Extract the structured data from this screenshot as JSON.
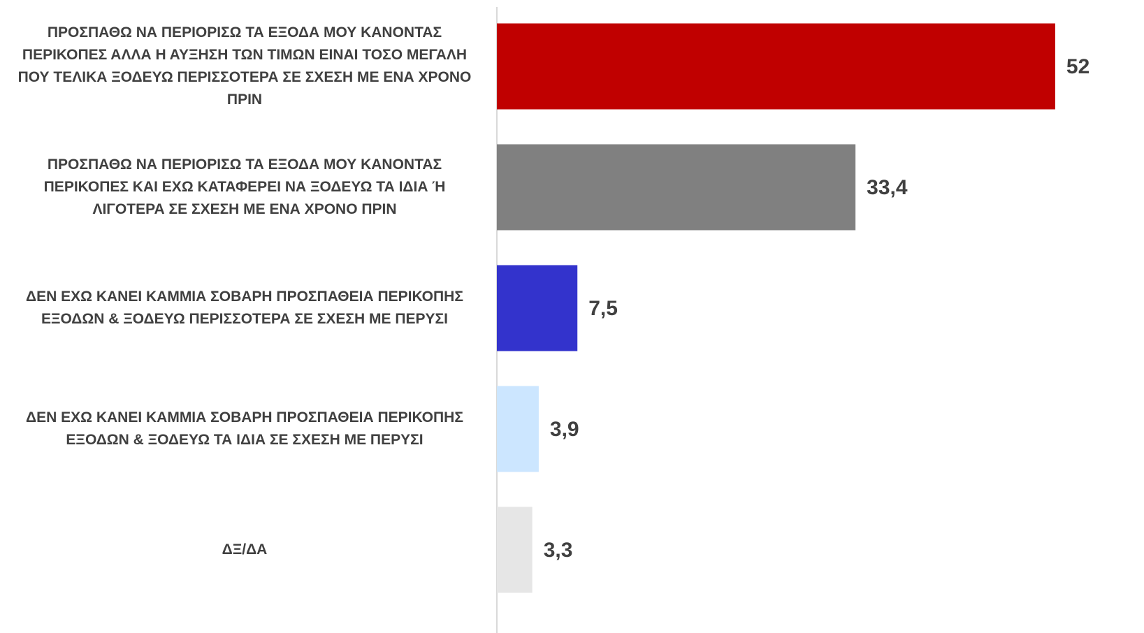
{
  "chart_data": {
    "type": "barh",
    "categories": [
      "ΠΡΟΣΠΑΘΩ ΝΑ ΠΕΡΙΟΡΙΣΩ ΤΑ ΕΞΟΔΑ ΜΟΥ ΚΑΝΟΝΤΑΣ ΠΕΡΙΚΟΠΕΣ ΑΛΛΑ Η ΑΥΞΗΣΗ ΤΩΝ ΤΙΜΩΝ ΕΙΝΑΙ ΤΟΣΟ ΜΕΓΑΛΗ ΠΟΥ ΤΕΛΙΚΑ ΞΟΔΕΥΩ ΠΕΡΙΣΣΟΤΕΡΑ ΣΕ ΣΧΕΣΗ ΜΕ ΕΝΑ ΧΡΟΝΟ ΠΡΙΝ",
      "ΠΡΟΣΠΑΘΩ ΝΑ ΠΕΡΙΟΡΙΣΩ ΤΑ ΕΞΟΔΑ ΜΟΥ ΚΑΝΟΝΤΑΣ ΠΕΡΙΚΟΠΕΣ ΚΑΙ ΕΧΩ ΚΑΤΑΦΕΡΕΙ ΝΑ ΞΟΔΕΥΩ ΤΑ ΙΔΙΑ Ή ΛΙΓΟΤΕΡΑ ΣΕ ΣΧΕΣΗ ΜΕ ΕΝΑ ΧΡΟΝΟ ΠΡΙΝ",
      "ΔΕΝ ΕΧΩ ΚΑΝΕΙ ΚΑΜΜΙΑ ΣΟΒΑΡΗ ΠΡΟΣΠΑΘΕΙΑ ΠΕΡΙΚΟΠΗΣ ΕΞΟΔΩΝ & ΞΟΔΕΥΩ ΠΕΡΙΣΣΟΤΕΡΑ ΣΕ ΣΧΕΣΗ ΜΕ ΠΕΡΥΣΙ",
      "ΔΕΝ ΕΧΩ ΚΑΝΕΙ ΚΑΜΜΙΑ ΣΟΒΑΡΗ ΠΡΟΣΠΑΘΕΙΑ ΠΕΡΙΚΟΠΗΣ ΕΞΟΔΩΝ & ΞΟΔΕΥΩ ΤΑ ΙΔΙΑ ΣΕ ΣΧΕΣΗ ΜΕ ΠΕΡΥΣΙ",
      "ΔΞ/ΔΑ"
    ],
    "values": [
      52,
      33.4,
      7.5,
      3.9,
      3.3
    ],
    "value_labels": [
      "52",
      "33,4",
      "7,5",
      "3,9",
      "3,3"
    ],
    "colors": [
      "#c00000",
      "#808080",
      "#3333cc",
      "#cce6ff",
      "#e6e6e6"
    ],
    "xlim": [
      0,
      55
    ]
  }
}
